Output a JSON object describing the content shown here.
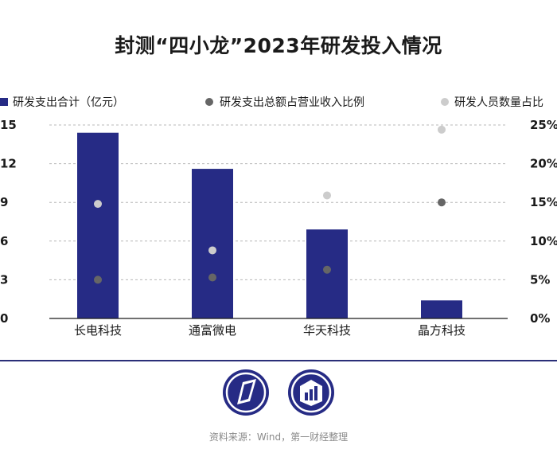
{
  "title": "封测“四小龙”2023年研发投入情况",
  "source": "资料来源：Wind，第一财经整理",
  "colors": {
    "bar": "#262b85",
    "ratio_revenue": "#666666",
    "ratio_staff": "#cccccc",
    "divider": "#2a2f78"
  },
  "logos": [
    "first-financial-logo-icon",
    "data-news-logo-icon"
  ],
  "chart_data": {
    "type": "bar",
    "categories": [
      "长电科技",
      "通富微电",
      "华天科技",
      "晶方科技"
    ],
    "series": [
      {
        "name": "研发支出合计（亿元）",
        "kind": "bar",
        "axis": "left",
        "values": [
          14.4,
          11.6,
          6.9,
          1.4
        ]
      },
      {
        "name": "研发支出总额占营业收入比例",
        "kind": "scatter",
        "axis": "right",
        "values": [
          5.0,
          5.3,
          6.3,
          15.0
        ]
      },
      {
        "name": "研发人员数量占比",
        "kind": "scatter",
        "axis": "right",
        "values": [
          14.8,
          8.8,
          15.9,
          24.4
        ]
      }
    ],
    "yleft": {
      "ticks": [
        "15",
        "12",
        "9",
        "6",
        "3",
        "0"
      ],
      "range": [
        0,
        15
      ]
    },
    "yright": {
      "ticks": [
        "25%",
        "20%",
        "15%",
        "10%",
        "5%",
        "0%"
      ],
      "range": [
        0,
        25
      ]
    },
    "legend": [
      "研发支出合计（亿元）",
      "研发支出总额占营业收入比例",
      "研发人员数量占比"
    ],
    "grid": true
  }
}
